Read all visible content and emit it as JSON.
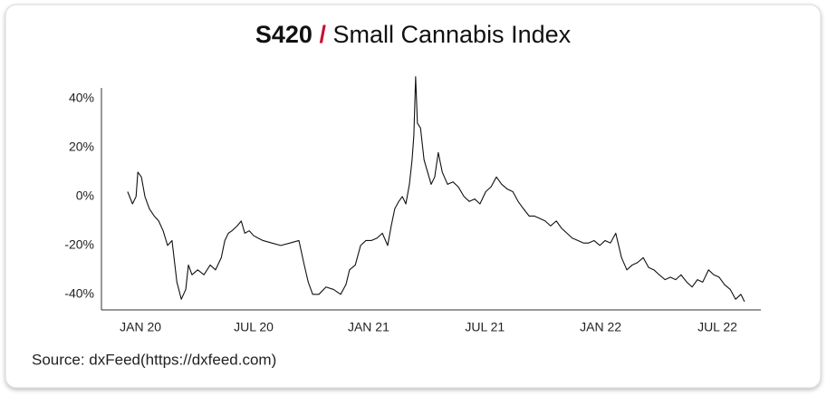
{
  "chart_data": {
    "type": "line",
    "title": {
      "ticker": "S420",
      "separator": "/",
      "name": "Small Cannabis Index"
    },
    "source": "Source: dxFeed(https://dxfeed.com)",
    "xlim": [
      -8.8,
      139.8
    ],
    "xticks": [
      {
        "value": 0,
        "label": "JAN 20"
      },
      {
        "value": 25.5,
        "label": "JUL 20"
      },
      {
        "value": 51.4,
        "label": "JAN 21"
      },
      {
        "value": 77.6,
        "label": "JUL 21"
      },
      {
        "value": 103.7,
        "label": "JAN 22"
      },
      {
        "value": 130,
        "label": "JUL 22"
      }
    ],
    "ylim": [
      -46,
      50
    ],
    "yticks": [
      {
        "value": -40,
        "label": "-40%"
      },
      {
        "value": -20,
        "label": "-20%"
      },
      {
        "value": 0,
        "label": "0%"
      },
      {
        "value": 20,
        "label": "20%"
      },
      {
        "value": 40,
        "label": "40%"
      }
    ],
    "series": [
      {
        "color": "#111111",
        "x": [
          -2.9,
          -1.8,
          -1,
          -0.6,
          0.2,
          1,
          2,
          3.1,
          4.1,
          5.1,
          6.1,
          7.1,
          8.2,
          9.2,
          10.2,
          10.8,
          11.6,
          12.9,
          14.3,
          15.7,
          16.9,
          18.2,
          19,
          19.8,
          20.6,
          21.8,
          22.7,
          23.5,
          24.5,
          25.5,
          26.5,
          27.6,
          29.6,
          31.6,
          33.7,
          35.7,
          36.9,
          37.8,
          38.8,
          40.2,
          41.8,
          43.5,
          45.1,
          46.3,
          47.1,
          48.4,
          49.6,
          50.8,
          52,
          53.3,
          54.5,
          55.7,
          56.5,
          57.3,
          58.2,
          59,
          59.8,
          60.6,
          61.2,
          61.6,
          62,
          62.4,
          63.1,
          63.9,
          64.7,
          65.5,
          66.3,
          67.1,
          68,
          69.2,
          70.4,
          71.6,
          72.9,
          74.1,
          75.3,
          76.5,
          77.8,
          79,
          80.2,
          81.4,
          82.7,
          83.9,
          85.1,
          86.3,
          87.6,
          88.8,
          90,
          91.2,
          92.4,
          93.7,
          94.9,
          96.1,
          97.3,
          98.6,
          99.8,
          101,
          102.2,
          103.5,
          104.7,
          105.9,
          107.1,
          108.4,
          109.6,
          110.8,
          112,
          113.3,
          114.5,
          115.7,
          116.9,
          118.2,
          119.4,
          120.6,
          121.8,
          123.1,
          124.3,
          125.5,
          126.7,
          128,
          129.2,
          130.4,
          131.6,
          132.9,
          134.1,
          135.3,
          136.1
        ],
        "values": [
          2,
          -3,
          0,
          10,
          8,
          0,
          -5,
          -8,
          -10,
          -14,
          -20,
          -18,
          -35,
          -42,
          -38,
          -28,
          -32,
          -30,
          -32,
          -28,
          -30,
          -25,
          -18,
          -15,
          -14,
          -12,
          -10,
          -15,
          -14,
          -16,
          -17,
          -18,
          -19,
          -20,
          -19,
          -18,
          -28,
          -35,
          -40,
          -40,
          -37,
          -38,
          -40,
          -36,
          -30,
          -28,
          -20,
          -18,
          -18,
          -17,
          -15,
          -20,
          -12,
          -5,
          -2,
          0,
          -3,
          5,
          15,
          25,
          49,
          30,
          28,
          15,
          10,
          5,
          8,
          18,
          10,
          5,
          6,
          4,
          0,
          -2,
          -1,
          -3,
          2,
          4,
          8,
          5,
          3,
          2,
          -2,
          -5,
          -8,
          -8,
          -9,
          -10,
          -12,
          -10,
          -13,
          -15,
          -17,
          -18,
          -19,
          -19,
          -18,
          -20,
          -18,
          -19,
          -15,
          -25,
          -30,
          -28,
          -27,
          -25,
          -29,
          -30,
          -32,
          -34,
          -33,
          -34,
          -32,
          -35,
          -37,
          -34,
          -35,
          -30,
          -32,
          -33,
          -36,
          -38,
          -42,
          -40,
          -43
        ]
      }
    ]
  }
}
